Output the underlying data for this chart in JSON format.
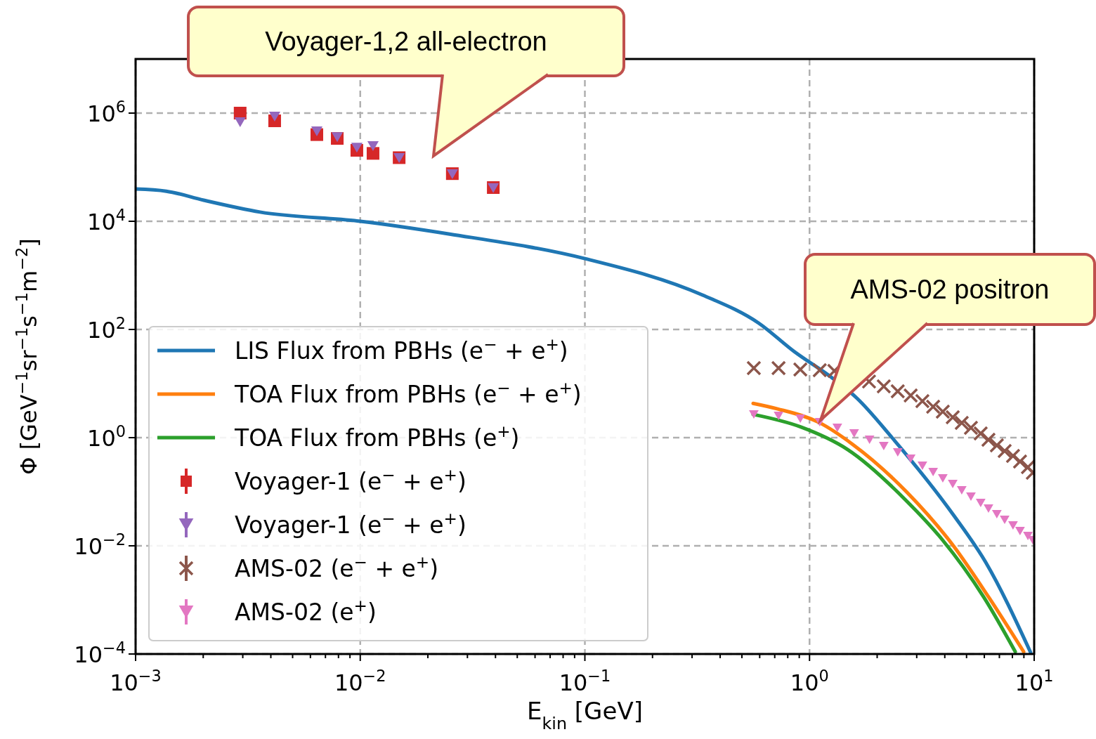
{
  "chart_data": {
    "type": "line",
    "xlabel": "E$_{kin}$ [GeV]",
    "ylabel": "Φ [GeV$^{−1}$sr$^{−1}$s$^{−1}$m$^{−2}$]",
    "log": "xy",
    "xlim": [
      0.001,
      10
    ],
    "ylim": [
      0.0001,
      10000000
    ],
    "xticks": [
      {
        "value": 0.001,
        "label": "10$^{−3}$"
      },
      {
        "value": 0.002,
        "label": null
      },
      {
        "value": 0.003,
        "label": null
      },
      {
        "value": 0.004,
        "label": null
      },
      {
        "value": 0.005,
        "label": null
      },
      {
        "value": 0.006,
        "label": null
      },
      {
        "value": 0.007,
        "label": null
      },
      {
        "value": 0.008,
        "label": null
      },
      {
        "value": 0.009,
        "label": null
      },
      {
        "value": 0.01,
        "label": "10$^{−2}$"
      },
      {
        "value": 0.02,
        "label": null
      },
      {
        "value": 0.03,
        "label": null
      },
      {
        "value": 0.04,
        "label": null
      },
      {
        "value": 0.05,
        "label": null
      },
      {
        "value": 0.06,
        "label": null
      },
      {
        "value": 0.07,
        "label": null
      },
      {
        "value": 0.08,
        "label": null
      },
      {
        "value": 0.09,
        "label": null
      },
      {
        "value": 0.1,
        "label": "10$^{−1}$"
      },
      {
        "value": 0.2,
        "label": null
      },
      {
        "value": 0.3,
        "label": null
      },
      {
        "value": 0.4,
        "label": null
      },
      {
        "value": 0.5,
        "label": null
      },
      {
        "value": 0.6,
        "label": null
      },
      {
        "value": 0.7,
        "label": null
      },
      {
        "value": 0.8,
        "label": null
      },
      {
        "value": 0.9,
        "label": null
      },
      {
        "value": 1,
        "label": "10$^{0}$"
      },
      {
        "value": 2,
        "label": null
      },
      {
        "value": 3,
        "label": null
      },
      {
        "value": 4,
        "label": null
      },
      {
        "value": 5,
        "label": null
      },
      {
        "value": 6,
        "label": null
      },
      {
        "value": 7,
        "label": null
      },
      {
        "value": 8,
        "label": null
      },
      {
        "value": 9,
        "label": null
      },
      {
        "value": 10,
        "label": "10$^{1}$"
      }
    ],
    "yticks": [
      {
        "value": 0.0001,
        "label": "10$^{−4}$"
      },
      {
        "value": 0.01,
        "label": "10$^{−2}$"
      },
      {
        "value": 1,
        "label": "10$^{0}$"
      },
      {
        "value": 100,
        "label": "10$^{2}$"
      },
      {
        "value": 10000,
        "label": "10$^{4}$"
      },
      {
        "value": 1000000,
        "label": "10$^{6}$"
      }
    ],
    "grid": true,
    "legend": "bottom left",
    "annotations": [
      "Voyager-1,2 all-electron",
      "AMS-02 positron"
    ],
    "series": [
      {
        "name": "LIS Flux from PBHs (e$^{−}$ + e$^{+}$)",
        "type": "line",
        "color": "#1f77b4",
        "x": [
          0.001,
          0.00137,
          0.00201,
          0.00358,
          0.01,
          0.025,
          0.1,
          0.334,
          0.594,
          0.851,
          1.25,
          1.63,
          2.33,
          4.37,
          6.08,
          9.64
        ],
        "values": [
          39500,
          36000,
          24500,
          14800,
          10000,
          5800,
          2040,
          433,
          131,
          39.5,
          13.1,
          5.3,
          1,
          0.0373,
          0.005,
          0.000107
        ]
      },
      {
        "name": "TOA Flux from PBHs (e$^{−}$ + e$^{+}$)",
        "type": "line",
        "color": "#ff7f0e",
        "x": [
          0.561,
          0.721,
          1.11,
          1.55,
          2.7,
          4.37,
          6.27,
          8.98
        ],
        "values": [
          4.3,
          3.4,
          1.88,
          0.76,
          0.1,
          0.01,
          0.00113,
          0.00011
        ]
      },
      {
        "name": "TOA Flux from PBHs (e$^{+}$)",
        "type": "line",
        "color": "#2ca02c",
        "x": [
          0.561,
          0.916,
          1.48,
          2.7,
          3.87,
          5.96,
          8.24
        ],
        "values": [
          2.69,
          1.57,
          0.6,
          0.068,
          0.0135,
          0.00113,
          0.00011
        ]
      },
      {
        "name": "Voyager-1 (e$^{−}$ + e$^{+}$)",
        "type": "scatter",
        "marker": "square",
        "color": "#d62728",
        "x": [
          0.00292,
          0.00416,
          0.00641,
          0.0079,
          0.00966,
          0.0114,
          0.0149,
          0.0257,
          0.0391
        ],
        "values": [
          1000000,
          720000,
          400000,
          340000,
          205000,
          180000,
          150000,
          76000,
          42000
        ]
      },
      {
        "name": "Voyager-1 (e$^{−}$ + e$^{+}$)",
        "type": "scatter",
        "marker": "triangle",
        "color": "#9467bd",
        "x": [
          0.00292,
          0.00416,
          0.00641,
          0.0079,
          0.00966,
          0.0114,
          0.0149,
          0.0257,
          0.0391
        ],
        "values": [
          680000,
          860000,
          460000,
          360000,
          230000,
          245000,
          148000,
          74000,
          41000
        ]
      },
      {
        "name": "AMS-02 (e$^{−}$ + e$^{+}$)",
        "type": "scatter",
        "marker": "cross",
        "color": "#8c564b",
        "x": [
          0.565,
          0.728,
          0.91,
          1.11,
          1.29,
          1.54,
          1.84,
          2.14,
          2.47,
          2.82,
          3.18,
          3.55,
          3.92,
          4.34,
          4.76,
          5.23,
          5.78,
          6.26,
          6.82,
          7.39,
          8.05,
          8.65,
          9.38,
          9.86
        ],
        "values": [
          19.3,
          19.3,
          18.2,
          17.7,
          17.1,
          null,
          10.9,
          8.87,
          7.2,
          6.0,
          4.73,
          3.73,
          3.02,
          2.38,
          1.87,
          1.52,
          1.2,
          0.914,
          0.72,
          0.567,
          0.46,
          0.362,
          0.285,
          0.224
        ]
      },
      {
        "name": "AMS-02 (e$^{+}$)",
        "type": "scatter",
        "marker": "triangle",
        "color": "#e377c2",
        "x": [
          0.565,
          0.728,
          0.91,
          1.11,
          1.33,
          1.58,
          1.85,
          2.14,
          2.47,
          2.82,
          3.18,
          3.55,
          3.92,
          4.34,
          4.76,
          5.23,
          5.78,
          6.26,
          6.82,
          7.39,
          8.05,
          8.65,
          9.38,
          9.86
        ],
        "values": [
          2.68,
          2.53,
          2.24,
          1.93,
          1.52,
          1.2,
          0.914,
          0.698,
          0.534,
          0.408,
          0.303,
          0.231,
          0.177,
          0.139,
          0.106,
          0.081,
          0.062,
          0.0488,
          0.0384,
          0.0303,
          0.0238,
          0.0187,
          0.0152,
          0.0127
        ]
      }
    ]
  }
}
